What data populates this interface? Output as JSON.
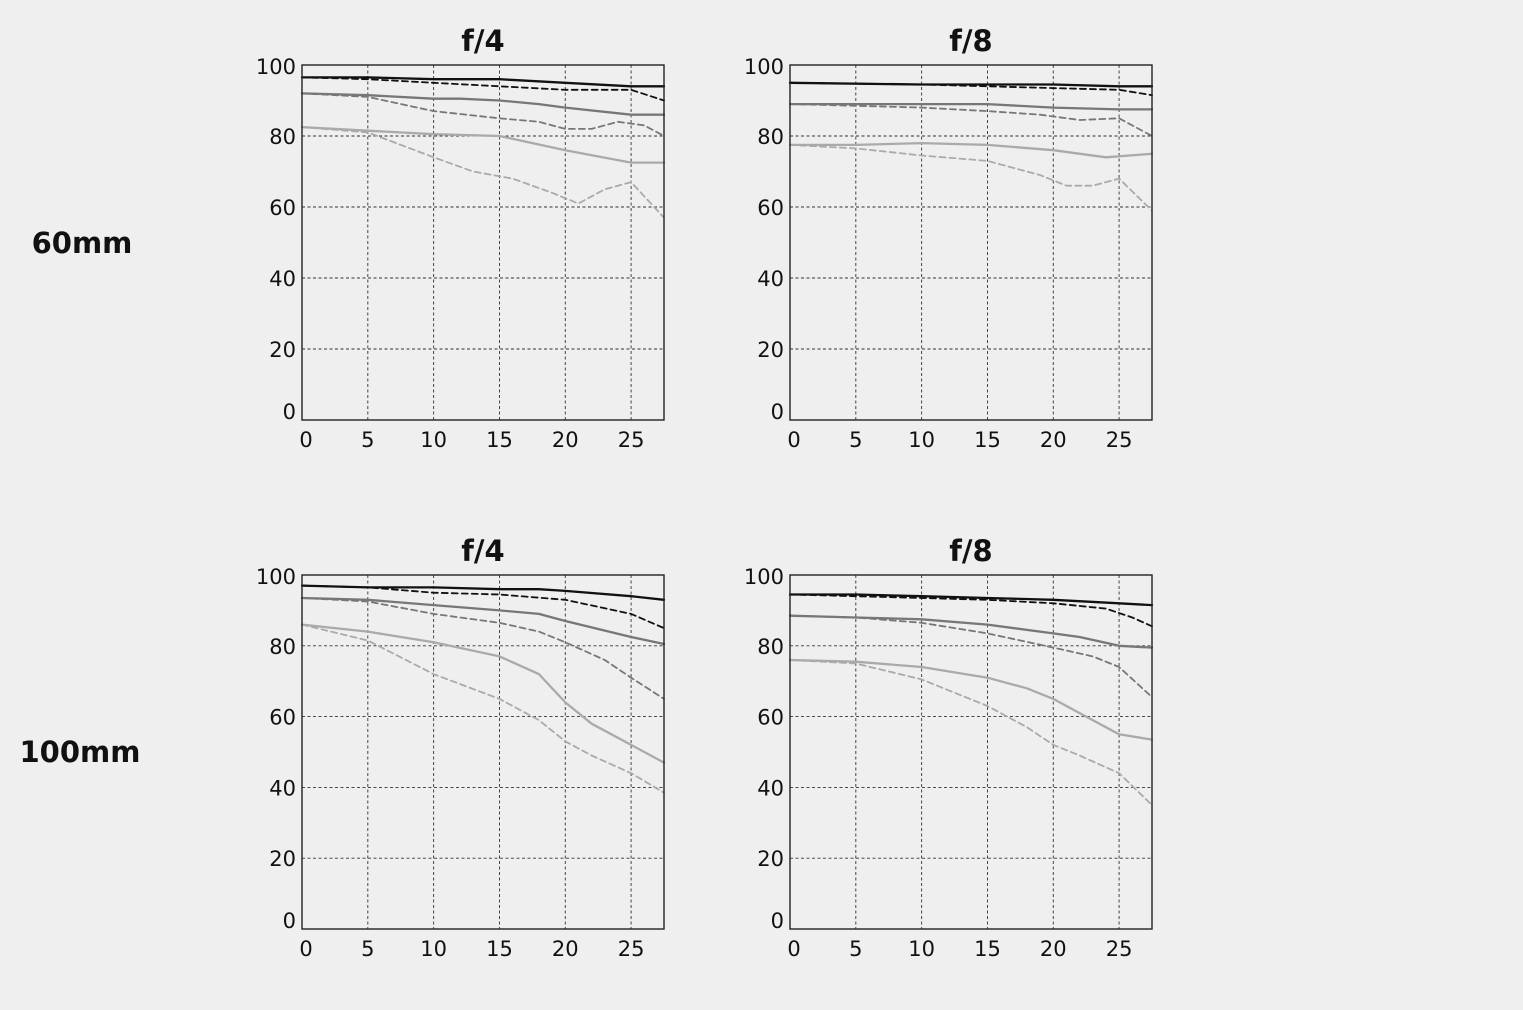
{
  "row_labels": [
    "60mm",
    "100mm"
  ],
  "colors": {
    "background": "#efefef",
    "black": "#111111",
    "dark_gray": "#777777",
    "light_gray": "#aaaaaa"
  },
  "chart_data": [
    {
      "type": "line",
      "row_label": "60mm",
      "title": "f/4",
      "xlim": [
        0,
        27.5
      ],
      "ylim": [
        0,
        100
      ],
      "xticks": [
        0,
        5,
        10,
        15,
        20,
        25
      ],
      "yticks": [
        0,
        20,
        40,
        60,
        80,
        100
      ],
      "grid": true,
      "series": [
        {
          "color": "#111111",
          "style": "solid",
          "x": [
            0,
            5,
            10,
            15,
            20,
            25,
            27.5
          ],
          "y": [
            96.5,
            96.5,
            96,
            96,
            95,
            94,
            94
          ]
        },
        {
          "color": "#111111",
          "style": "dashed",
          "x": [
            0,
            5,
            10,
            15,
            20,
            22,
            25,
            27.5
          ],
          "y": [
            96.5,
            96,
            95,
            94,
            93,
            93,
            93,
            90
          ]
        },
        {
          "color": "#777777",
          "style": "solid",
          "x": [
            0,
            5,
            10,
            12,
            15,
            18,
            20,
            25,
            27.5
          ],
          "y": [
            92,
            91.5,
            90.5,
            90.5,
            90,
            89,
            88,
            86,
            86
          ]
        },
        {
          "color": "#777777",
          "style": "dashed",
          "x": [
            0,
            5,
            10,
            15,
            18,
            20,
            22,
            24,
            26,
            27.5
          ],
          "y": [
            92,
            91,
            87,
            85,
            84,
            82,
            82,
            84,
            83,
            80
          ]
        },
        {
          "color": "#aaaaaa",
          "style": "solid",
          "x": [
            0,
            5,
            10,
            15,
            20,
            25,
            27.5
          ],
          "y": [
            82.5,
            81.5,
            80.5,
            80,
            76,
            72.5,
            72.5
          ]
        },
        {
          "color": "#aaaaaa",
          "style": "dashed",
          "x": [
            0,
            5,
            10,
            13,
            16,
            19,
            21,
            23,
            25,
            27.5
          ],
          "y": [
            82.5,
            81,
            74,
            70,
            68,
            64,
            61,
            65,
            67,
            57
          ]
        }
      ]
    },
    {
      "type": "line",
      "row_label": "60mm",
      "title": "f/8",
      "xlim": [
        0,
        27.5
      ],
      "ylim": [
        0,
        100
      ],
      "xticks": [
        0,
        5,
        10,
        15,
        20,
        25
      ],
      "yticks": [
        0,
        20,
        40,
        60,
        80,
        100
      ],
      "grid": true,
      "series": [
        {
          "color": "#111111",
          "style": "solid",
          "x": [
            0,
            10,
            15,
            20,
            25,
            27.5
          ],
          "y": [
            95,
            94.5,
            94.5,
            94.5,
            94,
            94
          ]
        },
        {
          "color": "#111111",
          "style": "dashed",
          "x": [
            0,
            10,
            15,
            20,
            25,
            27.5
          ],
          "y": [
            95,
            94.5,
            94,
            93.5,
            93,
            91.5
          ]
        },
        {
          "color": "#777777",
          "style": "solid",
          "x": [
            0,
            5,
            10,
            15,
            20,
            25,
            27.5
          ],
          "y": [
            89,
            89,
            89,
            89,
            88,
            87.5,
            87.5
          ]
        },
        {
          "color": "#777777",
          "style": "dashed",
          "x": [
            0,
            5,
            10,
            15,
            19,
            22,
            25,
            27.5
          ],
          "y": [
            89,
            88.5,
            88,
            87,
            86,
            84.5,
            85,
            80
          ]
        },
        {
          "color": "#aaaaaa",
          "style": "solid",
          "x": [
            0,
            5,
            10,
            15,
            20,
            24,
            27.5
          ],
          "y": [
            77.5,
            77.5,
            78,
            77.5,
            76,
            74,
            75
          ]
        },
        {
          "color": "#aaaaaa",
          "style": "dashed",
          "x": [
            0,
            5,
            10,
            15,
            19,
            21,
            23,
            25,
            27.5
          ],
          "y": [
            77.5,
            76.5,
            74.5,
            73,
            69,
            66,
            66,
            68,
            59
          ]
        }
      ]
    },
    {
      "type": "line",
      "row_label": "100mm",
      "title": "f/4",
      "xlim": [
        0,
        27.5
      ],
      "ylim": [
        0,
        100
      ],
      "xticks": [
        0,
        5,
        10,
        15,
        20,
        25
      ],
      "yticks": [
        0,
        20,
        40,
        60,
        80,
        100
      ],
      "grid": true,
      "series": [
        {
          "color": "#111111",
          "style": "solid",
          "x": [
            0,
            5,
            10,
            15,
            18,
            20,
            25,
            27.5
          ],
          "y": [
            97,
            96.5,
            96.5,
            96,
            96,
            95.5,
            94,
            93
          ]
        },
        {
          "color": "#111111",
          "style": "dashed",
          "x": [
            0,
            5,
            10,
            15,
            20,
            25,
            27.5
          ],
          "y": [
            97,
            96.5,
            95,
            94.5,
            93,
            89,
            85
          ]
        },
        {
          "color": "#777777",
          "style": "solid",
          "x": [
            0,
            5,
            10,
            15,
            18,
            20,
            25,
            27.5
          ],
          "y": [
            93.5,
            93,
            91.5,
            90,
            89,
            87,
            82.5,
            80.5
          ]
        },
        {
          "color": "#777777",
          "style": "dashed",
          "x": [
            0,
            5,
            10,
            15,
            18,
            20,
            23,
            25,
            27.5
          ],
          "y": [
            93.5,
            92.5,
            89,
            86.5,
            84,
            81,
            76,
            71,
            65
          ]
        },
        {
          "color": "#aaaaaa",
          "style": "solid",
          "x": [
            0,
            5,
            10,
            15,
            18,
            20,
            22,
            25,
            27.5
          ],
          "y": [
            86,
            84,
            81,
            77,
            72,
            64,
            58,
            52,
            47
          ]
        },
        {
          "color": "#aaaaaa",
          "style": "dashed",
          "x": [
            0,
            5,
            10,
            15,
            18,
            20,
            22,
            25,
            27.5
          ],
          "y": [
            86,
            81.5,
            72,
            65,
            59,
            53,
            49,
            44,
            38.5
          ]
        }
      ]
    },
    {
      "type": "line",
      "row_label": "100mm",
      "title": "f/8",
      "xlim": [
        0,
        27.5
      ],
      "ylim": [
        0,
        100
      ],
      "xticks": [
        0,
        5,
        10,
        15,
        20,
        25
      ],
      "yticks": [
        0,
        20,
        40,
        60,
        80,
        100
      ],
      "grid": true,
      "series": [
        {
          "color": "#111111",
          "style": "solid",
          "x": [
            0,
            5,
            10,
            15,
            20,
            25,
            27.5
          ],
          "y": [
            94.5,
            94.5,
            94,
            93.5,
            93,
            92,
            91.5
          ]
        },
        {
          "color": "#111111",
          "style": "dashed",
          "x": [
            0,
            5,
            10,
            15,
            20,
            24,
            26,
            27.5
          ],
          "y": [
            94.5,
            94,
            93.5,
            93,
            92,
            90.5,
            88,
            85.5
          ]
        },
        {
          "color": "#777777",
          "style": "solid",
          "x": [
            0,
            5,
            10,
            15,
            20,
            22,
            25,
            27.5
          ],
          "y": [
            88.5,
            88,
            87.5,
            86,
            83.5,
            82.5,
            80,
            79.5
          ]
        },
        {
          "color": "#777777",
          "style": "dashed",
          "x": [
            0,
            5,
            10,
            15,
            20,
            23,
            25,
            27.5
          ],
          "y": [
            88.5,
            88,
            86.5,
            83.5,
            79.5,
            77,
            74,
            65.5
          ]
        },
        {
          "color": "#aaaaaa",
          "style": "solid",
          "x": [
            0,
            5,
            10,
            15,
            18,
            20,
            22,
            25,
            27.5
          ],
          "y": [
            76,
            75.5,
            74,
            71,
            68,
            65,
            61,
            55,
            53.5
          ]
        },
        {
          "color": "#aaaaaa",
          "style": "dashed",
          "x": [
            0,
            5,
            10,
            15,
            18,
            20,
            22,
            25,
            27.5
          ],
          "y": [
            76,
            75,
            70.5,
            63,
            57,
            52,
            49,
            44,
            35
          ]
        }
      ]
    }
  ]
}
